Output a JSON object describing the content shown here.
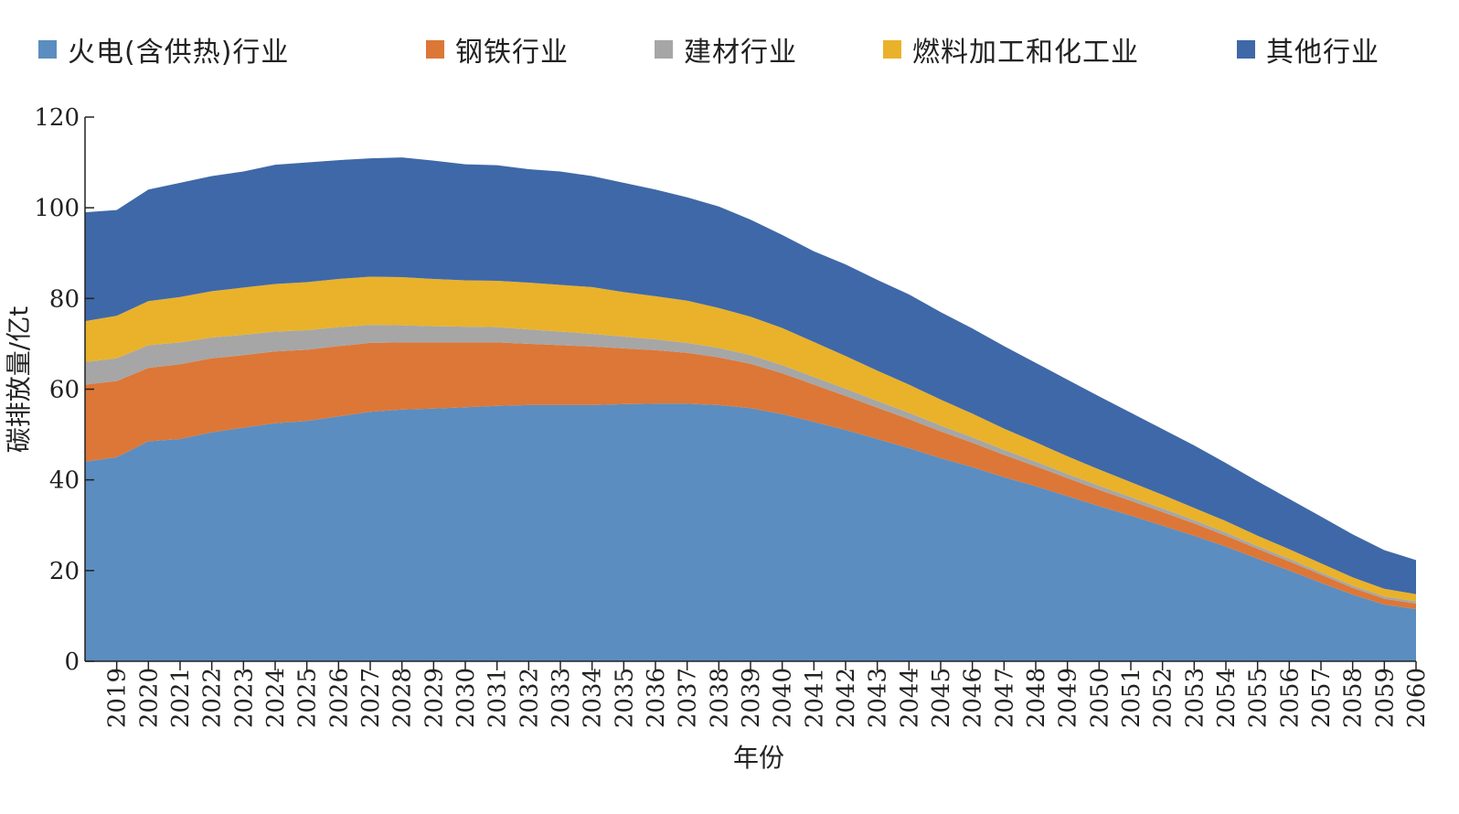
{
  "chart_data": {
    "type": "area",
    "stacked": true,
    "title": "",
    "xlabel": "年份",
    "ylabel": "碳排放量/亿t",
    "ylim": [
      0,
      120
    ],
    "y_ticks": [
      0,
      20,
      40,
      60,
      80,
      100,
      120
    ],
    "x_ticks": [
      "2019",
      "2020",
      "2021",
      "2022",
      "2023",
      "2024",
      "2025",
      "2026",
      "2027",
      "2028",
      "2029",
      "2030",
      "2031",
      "2032",
      "2033",
      "2034",
      "2035",
      "2036",
      "2037",
      "2038",
      "2039",
      "2040",
      "2041",
      "2042",
      "2043",
      "2044",
      "2045",
      "2046",
      "2047",
      "2048",
      "2049",
      "2050",
      "2051",
      "2052",
      "2053",
      "2054",
      "2055",
      "2056",
      "2057",
      "2058",
      "2059",
      "2060"
    ],
    "x_start": 2018,
    "x_end": 2060,
    "legend_position": "top",
    "x": [
      2018,
      2019,
      2020,
      2021,
      2022,
      2023,
      2024,
      2025,
      2026,
      2027,
      2028,
      2029,
      2030,
      2031,
      2032,
      2033,
      2034,
      2035,
      2036,
      2037,
      2038,
      2039,
      2040,
      2041,
      2042,
      2043,
      2044,
      2045,
      2046,
      2047,
      2048,
      2049,
      2050,
      2051,
      2052,
      2053,
      2054,
      2055,
      2056,
      2057,
      2058,
      2059,
      2060
    ],
    "series": [
      {
        "name": "火电(含供热)行业",
        "color": "#5B8DC0",
        "values": [
          44,
          45,
          48.5,
          49,
          50.5,
          51.5,
          52.5,
          53,
          54,
          55,
          55.5,
          55.7,
          56,
          56.3,
          56.5,
          56.5,
          56.5,
          56.7,
          56.8,
          56.8,
          56.5,
          55.8,
          54.5,
          52.8,
          51,
          49,
          47,
          44.8,
          42.8,
          40.6,
          38.6,
          36.4,
          34.2,
          32.1,
          29.9,
          27.7,
          25.3,
          22.6,
          20,
          17.3,
          14.7,
          12.5,
          11.5
        ]
      },
      {
        "name": "钢铁行业",
        "color": "#DC7737",
        "values": [
          17,
          16.8,
          16.2,
          16.5,
          16.3,
          16,
          15.8,
          15.7,
          15.5,
          15.2,
          14.8,
          14.6,
          14.3,
          14,
          13.5,
          13.2,
          12.9,
          12.3,
          11.8,
          11.2,
          10.5,
          9.8,
          9,
          8.2,
          7.5,
          6.9,
          6.4,
          5.9,
          5.4,
          4.9,
          4.4,
          4,
          3.6,
          3.3,
          3,
          2.7,
          2.4,
          2.2,
          2,
          1.8,
          1.5,
          1.3,
          1.2
        ]
      },
      {
        "name": "建材行业",
        "color": "#A6A6A6",
        "values": [
          5,
          5,
          5,
          4.8,
          4.6,
          4.5,
          4.4,
          4.3,
          4.2,
          4,
          3.8,
          3.6,
          3.5,
          3.4,
          3.2,
          3,
          2.8,
          2.6,
          2.4,
          2.2,
          2.1,
          1.9,
          1.8,
          1.7,
          1.6,
          1.5,
          1.4,
          1.3,
          1.2,
          1.1,
          1,
          0.9,
          0.9,
          0.8,
          0.8,
          0.7,
          0.7,
          0.6,
          0.6,
          0.5,
          0.5,
          0.5,
          0.5
        ]
      },
      {
        "name": "燃料加工和化工业",
        "color": "#E9B22A",
        "values": [
          9,
          9.4,
          9.7,
          10,
          10.2,
          10.4,
          10.5,
          10.6,
          10.6,
          10.6,
          10.6,
          10.4,
          10.2,
          10.2,
          10.3,
          10.3,
          10.3,
          9.8,
          9.5,
          9.3,
          8.8,
          8.5,
          8.2,
          7.7,
          7.2,
          6.7,
          6.2,
          5.7,
          5.2,
          4.7,
          4.3,
          3.9,
          3.6,
          3.3,
          3,
          2.7,
          2.5,
          2.3,
          2.1,
          2,
          1.8,
          1.7,
          1.6
        ]
      },
      {
        "name": "其他行业",
        "color": "#3F68A8",
        "values": [
          24,
          23.3,
          24.6,
          25.2,
          25.4,
          25.6,
          26.3,
          26.4,
          26.2,
          26.1,
          26.4,
          26.1,
          25.6,
          25.5,
          25,
          25,
          24.5,
          24.1,
          23.5,
          22.8,
          22.4,
          21.4,
          20.5,
          20,
          20.2,
          20,
          19.9,
          19.3,
          18.8,
          18.2,
          17.5,
          16.9,
          16.1,
          15.3,
          14.5,
          13.8,
          12.8,
          12,
          11.1,
          10.3,
          9.5,
          8.5,
          7.5
        ]
      }
    ]
  }
}
